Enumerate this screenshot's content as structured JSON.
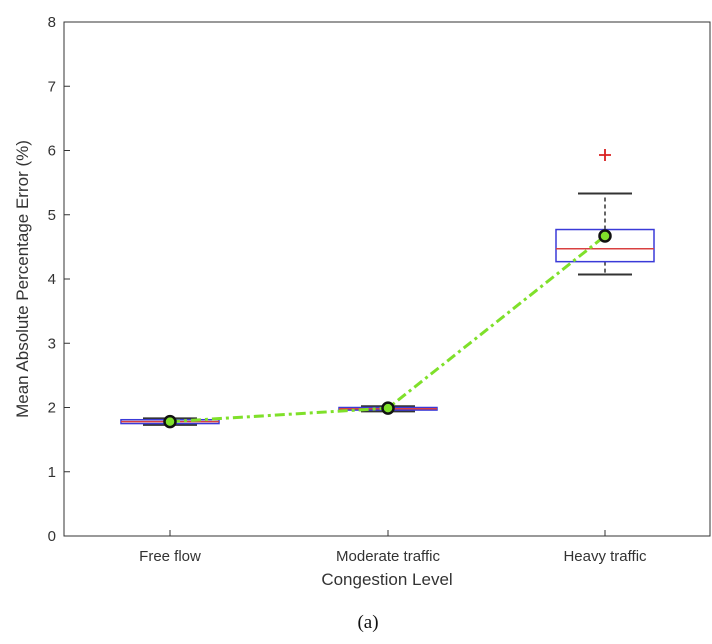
{
  "chart_data": {
    "type": "box",
    "xlabel": "Congestion Level",
    "ylabel": "Mean Absolute Percentage Error (%)",
    "ylim": [
      0,
      8
    ],
    "yticks": [
      "0",
      "1",
      "2",
      "3",
      "4",
      "5",
      "6",
      "7",
      "8"
    ],
    "categories": [
      "Free flow",
      "Moderate traffic",
      "Heavy traffic"
    ],
    "boxes": [
      {
        "category": "Free flow",
        "q1": 1.75,
        "median": 1.78,
        "q3": 1.81,
        "whisker_low": 1.73,
        "whisker_high": 1.83,
        "mean": 1.78,
        "outliers": []
      },
      {
        "category": "Moderate traffic",
        "q1": 1.96,
        "median": 1.98,
        "q3": 2.0,
        "whisker_low": 1.94,
        "whisker_high": 2.02,
        "mean": 1.99,
        "outliers": []
      },
      {
        "category": "Heavy traffic",
        "q1": 4.27,
        "median": 4.47,
        "q3": 4.77,
        "whisker_low": 4.07,
        "whisker_high": 5.33,
        "mean": 4.67,
        "outliers": [
          5.93
        ]
      }
    ],
    "mean_line": {
      "values": [
        1.78,
        1.99,
        4.67
      ],
      "style": "dash-dot"
    },
    "grid": false,
    "colors": {
      "box": "#3a3ad8",
      "median": "#d94040",
      "whisker": "#333333",
      "outlier": "#d92020",
      "mean_line": "#7fe02a",
      "mean_marker_edge": "#111111",
      "mean_marker_fill": "#7fe02a"
    }
  },
  "caption": "(a)"
}
